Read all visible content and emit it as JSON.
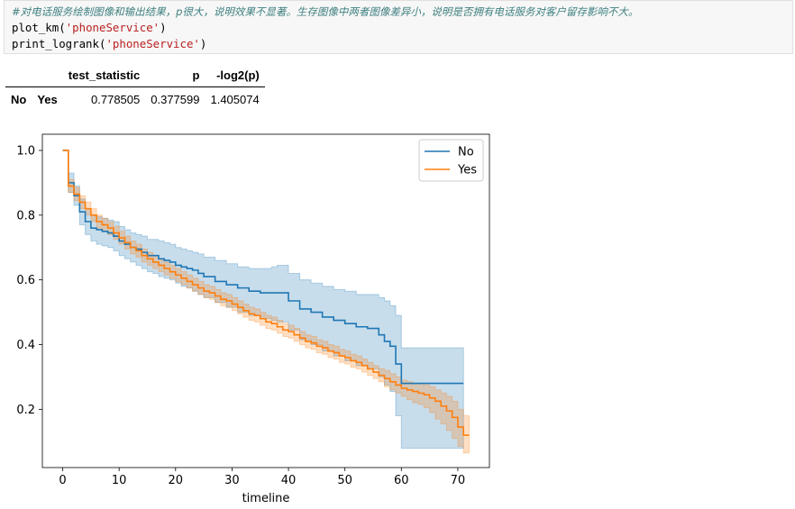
{
  "code": {
    "comment": "#对电话服务绘制图像和输出结果，p很大，说明效果不显著。生存图像中两者图像差异小，说明是否拥有电话服务对客户留存影响不大。",
    "line2_func": "plot_km(",
    "line2_arg": "'phoneService'",
    "line2_end": ")",
    "line3_func": "print_logrank(",
    "line3_arg": "'phoneService'",
    "line3_end": ")"
  },
  "table": {
    "columns": [
      "test_statistic",
      "p",
      "-log2(p)"
    ],
    "row_index": [
      "No",
      "Yes"
    ],
    "values": [
      "0.778505",
      "0.377599",
      "1.405074"
    ]
  },
  "colors": {
    "No": "#1f77b4",
    "Yes": "#ff7f0e"
  },
  "chart_data": {
    "type": "line",
    "xlabel": "timeline",
    "ylabel": "",
    "xlim": [
      -3.6,
      75.6
    ],
    "ylim": [
      0.02,
      1.05
    ],
    "xticks": [
      0,
      10,
      20,
      30,
      40,
      50,
      60,
      70
    ],
    "yticks": [
      0.2,
      0.4,
      0.6,
      0.8,
      1.0
    ],
    "ytick_labels": [
      "0.2",
      "0.4",
      "0.6",
      "0.8",
      "1.0"
    ],
    "legend_position": "top-right",
    "series": [
      {
        "name": "No",
        "x": [
          0,
          1,
          2,
          3,
          4,
          5,
          6,
          7,
          8,
          9,
          10,
          11,
          12,
          13,
          14,
          15,
          16,
          17,
          18,
          19,
          20,
          21,
          22,
          23,
          24,
          25,
          27,
          29,
          31,
          33,
          35,
          37,
          38,
          40,
          42,
          44,
          46,
          48,
          50,
          52,
          54,
          56,
          57,
          58,
          59,
          60,
          62,
          64,
          66,
          68,
          70,
          71
        ],
        "y": [
          1.0,
          0.9,
          0.86,
          0.81,
          0.78,
          0.76,
          0.755,
          0.75,
          0.745,
          0.735,
          0.72,
          0.71,
          0.7,
          0.695,
          0.685,
          0.675,
          0.675,
          0.665,
          0.66,
          0.655,
          0.645,
          0.64,
          0.635,
          0.63,
          0.62,
          0.61,
          0.595,
          0.585,
          0.575,
          0.565,
          0.56,
          0.56,
          0.56,
          0.535,
          0.51,
          0.5,
          0.485,
          0.475,
          0.465,
          0.455,
          0.45,
          0.43,
          0.41,
          0.395,
          0.34,
          0.28,
          0.28,
          0.28,
          0.28,
          0.28,
          0.28,
          0.28
        ],
        "ci_lower": [
          1.0,
          0.87,
          0.83,
          0.77,
          0.74,
          0.72,
          0.71,
          0.705,
          0.7,
          0.69,
          0.675,
          0.665,
          0.655,
          0.645,
          0.635,
          0.625,
          0.62,
          0.61,
          0.605,
          0.6,
          0.59,
          0.58,
          0.575,
          0.565,
          0.555,
          0.545,
          0.53,
          0.515,
          0.5,
          0.49,
          0.48,
          0.475,
          0.47,
          0.445,
          0.415,
          0.4,
          0.38,
          0.365,
          0.35,
          0.335,
          0.325,
          0.3,
          0.275,
          0.255,
          0.18,
          0.08,
          0.08,
          0.08,
          0.08,
          0.08,
          0.08,
          0.08
        ],
        "ci_upper": [
          1.0,
          0.93,
          0.89,
          0.85,
          0.82,
          0.8,
          0.795,
          0.79,
          0.785,
          0.78,
          0.765,
          0.755,
          0.745,
          0.74,
          0.735,
          0.725,
          0.725,
          0.72,
          0.715,
          0.71,
          0.7,
          0.695,
          0.69,
          0.685,
          0.68,
          0.67,
          0.66,
          0.65,
          0.64,
          0.635,
          0.635,
          0.64,
          0.645,
          0.62,
          0.6,
          0.59,
          0.58,
          0.57,
          0.565,
          0.555,
          0.555,
          0.545,
          0.535,
          0.52,
          0.49,
          0.39,
          0.39,
          0.39,
          0.39,
          0.39,
          0.39,
          0.39
        ]
      },
      {
        "name": "Yes",
        "x": [
          0,
          1,
          2,
          3,
          4,
          5,
          6,
          7,
          8,
          9,
          10,
          11,
          12,
          13,
          14,
          15,
          16,
          17,
          18,
          19,
          20,
          21,
          22,
          23,
          24,
          25,
          26,
          27,
          28,
          29,
          30,
          31,
          32,
          33,
          34,
          35,
          36,
          37,
          38,
          39,
          40,
          41,
          42,
          43,
          44,
          45,
          46,
          47,
          48,
          49,
          50,
          51,
          52,
          53,
          54,
          55,
          56,
          57,
          58,
          59,
          60,
          61,
          62,
          63,
          64,
          65,
          66,
          67,
          68,
          69,
          70,
          71,
          72
        ],
        "y": [
          1.0,
          0.89,
          0.865,
          0.84,
          0.82,
          0.8,
          0.78,
          0.77,
          0.76,
          0.745,
          0.73,
          0.715,
          0.7,
          0.69,
          0.675,
          0.665,
          0.655,
          0.645,
          0.635,
          0.625,
          0.615,
          0.605,
          0.595,
          0.585,
          0.575,
          0.565,
          0.56,
          0.55,
          0.54,
          0.535,
          0.525,
          0.515,
          0.505,
          0.495,
          0.49,
          0.48,
          0.47,
          0.465,
          0.455,
          0.445,
          0.44,
          0.43,
          0.42,
          0.41,
          0.405,
          0.395,
          0.39,
          0.38,
          0.375,
          0.365,
          0.36,
          0.35,
          0.345,
          0.335,
          0.325,
          0.315,
          0.305,
          0.295,
          0.285,
          0.275,
          0.265,
          0.26,
          0.255,
          0.25,
          0.245,
          0.235,
          0.225,
          0.21,
          0.195,
          0.175,
          0.145,
          0.12,
          0.12
        ],
        "ci_lower": [
          1.0,
          0.87,
          0.845,
          0.82,
          0.8,
          0.78,
          0.76,
          0.75,
          0.74,
          0.725,
          0.71,
          0.695,
          0.68,
          0.67,
          0.655,
          0.645,
          0.635,
          0.625,
          0.615,
          0.605,
          0.595,
          0.585,
          0.575,
          0.565,
          0.555,
          0.545,
          0.54,
          0.53,
          0.52,
          0.515,
          0.505,
          0.495,
          0.485,
          0.475,
          0.47,
          0.46,
          0.45,
          0.445,
          0.435,
          0.425,
          0.42,
          0.41,
          0.4,
          0.39,
          0.385,
          0.375,
          0.37,
          0.36,
          0.355,
          0.345,
          0.34,
          0.33,
          0.325,
          0.315,
          0.305,
          0.295,
          0.285,
          0.27,
          0.26,
          0.25,
          0.24,
          0.23,
          0.22,
          0.215,
          0.205,
          0.19,
          0.17,
          0.155,
          0.135,
          0.11,
          0.085,
          0.065,
          0.065
        ],
        "ci_upper": [
          1.0,
          0.91,
          0.885,
          0.86,
          0.84,
          0.82,
          0.8,
          0.79,
          0.78,
          0.765,
          0.75,
          0.735,
          0.72,
          0.71,
          0.695,
          0.685,
          0.675,
          0.665,
          0.655,
          0.645,
          0.635,
          0.625,
          0.615,
          0.605,
          0.595,
          0.585,
          0.58,
          0.57,
          0.56,
          0.555,
          0.545,
          0.535,
          0.525,
          0.515,
          0.51,
          0.5,
          0.49,
          0.485,
          0.475,
          0.465,
          0.46,
          0.45,
          0.44,
          0.43,
          0.425,
          0.415,
          0.41,
          0.4,
          0.395,
          0.385,
          0.38,
          0.37,
          0.365,
          0.355,
          0.345,
          0.335,
          0.325,
          0.32,
          0.31,
          0.3,
          0.29,
          0.285,
          0.28,
          0.28,
          0.275,
          0.27,
          0.26,
          0.25,
          0.24,
          0.225,
          0.2,
          0.18,
          0.18
        ]
      }
    ]
  }
}
